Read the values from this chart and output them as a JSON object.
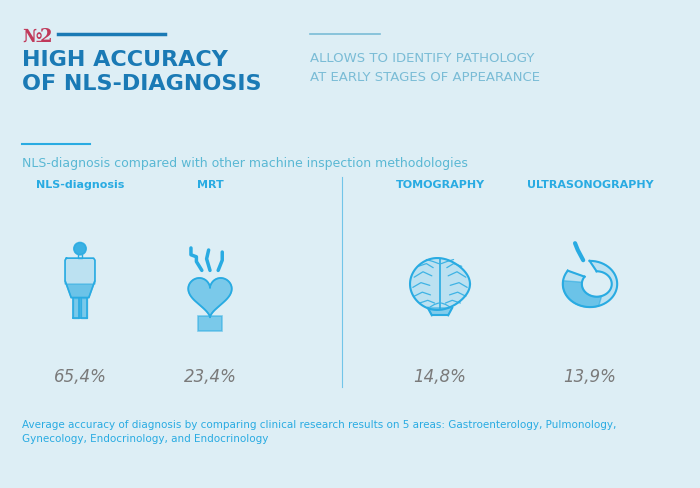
{
  "background_color": "#ddeef5",
  "title_number_color": "#c0395a",
  "title_line_color": "#1a7ab5",
  "title_main": "HIGH ACCURACY\nOF NLS-DIAGNOSIS",
  "title_main_color": "#1a7ab5",
  "title_sub": "ALLOWS TO IDENTIFY PATHOLOGY\nAT EARLY STAGES OF APPEARANCE",
  "title_sub_color": "#7abcd6",
  "section_label": "NLS-diagnosis compared with other machine inspection methodologies",
  "section_label_color": "#5ab8d4",
  "categories": [
    "NLS-diagnosis",
    "MRT",
    "TOMOGRAPHY",
    "ULTRASONOGRAPHY"
  ],
  "values": [
    "65,4%",
    "23,4%",
    "14,8%",
    "13,9%"
  ],
  "category_color": "#29abe2",
  "value_color": "#7a7a7a",
  "divider_color": "#29abe2",
  "footnote": "Average accuracy of diagnosis by comparing clinical research results on 5 areas: Gastroenterology, Pulmonology,\nGynecology, Endocrinology, and Endocrinology",
  "footnote_color": "#29abe2",
  "short_line_color": "#29abe2",
  "icon_outline_color": "#29abe2",
  "icon_fill_color": "#29abe2",
  "icon_fill_alpha": 0.18,
  "icon_fill_alpha_solid": 0.55
}
